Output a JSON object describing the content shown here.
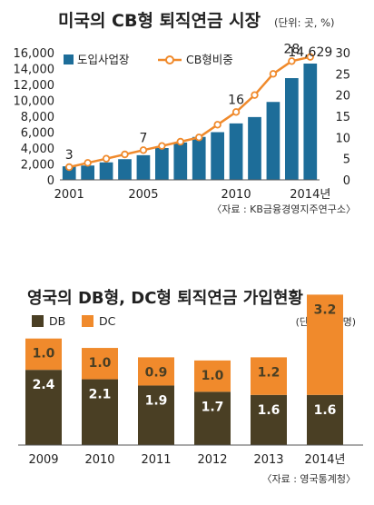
{
  "chart1": {
    "title": "미국의 CB형 퇴직연금 시장",
    "unit": "(단위: 곳, %)",
    "source": "〈자료 : KB금융경영지주연구소〉",
    "colors": {
      "bar": "#1d6d99",
      "line": "#f08a2c"
    },
    "chart_data": {
      "type": "bar",
      "x": [
        2001,
        2002,
        2003,
        2004,
        2005,
        2006,
        2007,
        2008,
        2009,
        2010,
        2011,
        2012,
        2013,
        2014
      ],
      "xticks": [
        "2001",
        "2005",
        "2010",
        "2014년"
      ],
      "series": [
        {
          "name": "도입사업장",
          "type": "bar",
          "axis": "left",
          "values": [
            1700,
            1800,
            2200,
            2600,
            3100,
            4000,
            4700,
            5400,
            6000,
            7100,
            7900,
            9800,
            12800,
            14629
          ]
        },
        {
          "name": "CB형비중",
          "type": "line",
          "axis": "right",
          "values": [
            3,
            4,
            5,
            6,
            7,
            8,
            9,
            10,
            13,
            16,
            20,
            25,
            28,
            29
          ]
        }
      ],
      "left_axis": {
        "ylim": [
          0,
          16000
        ],
        "ticks": [
          "0",
          "2,000",
          "4,000",
          "6,000",
          "8,000",
          "10,000",
          "12,000",
          "14,000",
          "16,000"
        ]
      },
      "right_axis": {
        "ylim": [
          0,
          30
        ],
        "ticks": [
          "0",
          "5",
          "10",
          "15",
          "20",
          "25",
          "30"
        ]
      },
      "labels": [
        {
          "series": 1,
          "index": 0,
          "text": "3"
        },
        {
          "series": 1,
          "index": 4,
          "text": "7"
        },
        {
          "series": 1,
          "index": 9,
          "text": "16"
        },
        {
          "series": 1,
          "index": 12,
          "text": "28"
        },
        {
          "series": 0,
          "index": 13,
          "text": "14,629"
        }
      ],
      "legend": "top-left",
      "grid": false
    }
  },
  "chart2": {
    "title": "영국의 DB형, DC형 퇴직연금 가입현황",
    "unit": "(단위: 백만명)",
    "source": "〈자료 : 영국통계청〉",
    "colors": {
      "db": "#4a3f24",
      "dc": "#f08a2c"
    },
    "chart_data": {
      "type": "bar",
      "stacked": true,
      "categories": [
        "2009",
        "2010",
        "2011",
        "2012",
        "2013",
        "2014년"
      ],
      "series": [
        {
          "name": "DB",
          "values": [
            2.4,
            2.1,
            1.9,
            1.7,
            1.6,
            1.6
          ],
          "labels": [
            "2.4",
            "2.1",
            "1.9",
            "1.7",
            "1.6",
            "1.6"
          ]
        },
        {
          "name": "DC",
          "values": [
            1.0,
            1.0,
            0.9,
            1.0,
            1.2,
            3.2
          ],
          "labels": [
            "1.0",
            "1.0",
            "0.9",
            "1.0",
            "1.2",
            "3.2"
          ]
        }
      ],
      "legend": "top-left",
      "grid": false
    }
  }
}
